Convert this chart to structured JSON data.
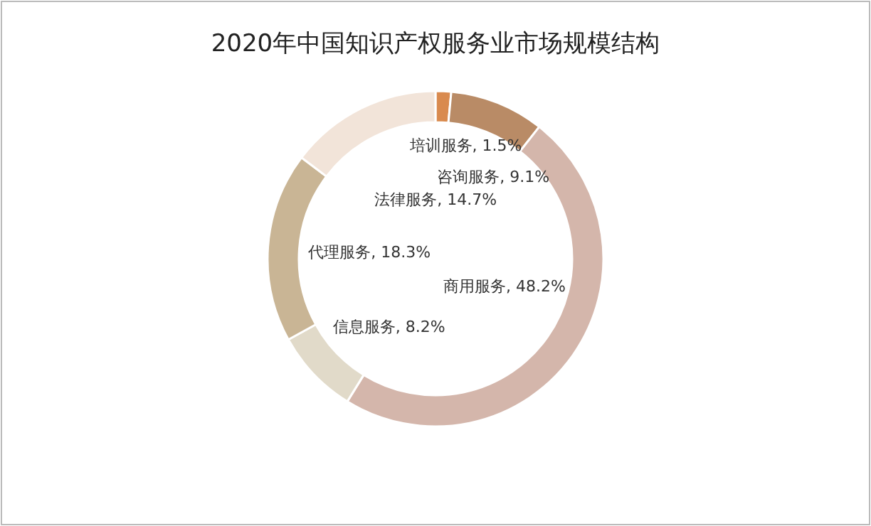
{
  "chart_data": {
    "type": "donut",
    "title": "2020年中国知识产权服务业市场规模结构",
    "categories": [
      "培训服务",
      "咨询服务",
      "商用服务",
      "信息服务",
      "代理服务",
      "法律服务"
    ],
    "values": [
      1.5,
      9.1,
      48.2,
      8.2,
      18.3,
      14.7
    ],
    "colors": [
      "#d98a4e",
      "#b98b66",
      "#d4b6ab",
      "#e1dac9",
      "#c9b595",
      "#f2e4d9"
    ],
    "value_labels": [
      ", 1.5%",
      ", 9.1%",
      ", 48.2%",
      ", 8.2%",
      ", 18.3%",
      ", 14.7%"
    ]
  }
}
